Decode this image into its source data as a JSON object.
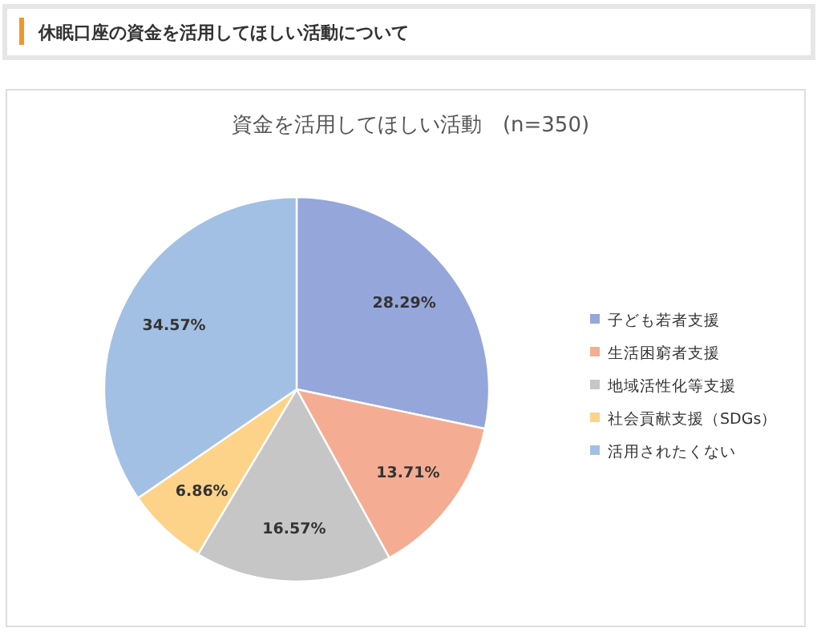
{
  "chart_data": {
    "type": "pie",
    "title": "休眠口座の資金を活用してほしい活動について",
    "subtitle": "資金を活用してほしい活動　(n=350)",
    "categories": [
      "子ども若者支援",
      "生活困窮者支援",
      "地域活性化等支援",
      "社会貢献支援（SDGs）",
      "活用されたくない"
    ],
    "values": [
      28.29,
      13.71,
      16.57,
      6.86,
      34.57
    ],
    "colors": [
      "#95a6da",
      "#f4ad92",
      "#c6c6c6",
      "#fdd38a",
      "#a2c0e4"
    ],
    "value_labels": [
      "28.29%",
      "13.71%",
      "16.57%",
      "6.86%",
      "34.57%"
    ],
    "legend": "right"
  }
}
